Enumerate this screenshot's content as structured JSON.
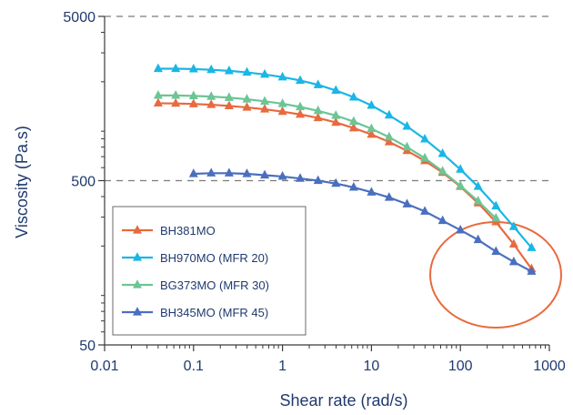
{
  "chart_data": {
    "type": "line",
    "title": "",
    "xlabel": "Shear rate (rad/s)",
    "ylabel": "Viscosity (Pa.s)",
    "x_scale": "log",
    "y_scale": "log",
    "xlim": [
      0.01,
      1000
    ],
    "ylim": [
      50,
      5000
    ],
    "x_ticks": [
      {
        "value": 0.01,
        "label": "0.01"
      },
      {
        "value": 0.1,
        "label": "0.1"
      },
      {
        "value": 1,
        "label": "1"
      },
      {
        "value": 10,
        "label": "10"
      },
      {
        "value": 100,
        "label": "100"
      },
      {
        "value": 1000,
        "label": "1000"
      }
    ],
    "y_ticks": [
      {
        "value": 50,
        "label": "50"
      },
      {
        "value": 500,
        "label": "500"
      },
      {
        "value": 5000,
        "label": "5000"
      }
    ],
    "grid": "dashed horizontal lines at 500 and 5000",
    "legend_position": "bottom-left",
    "annotation": {
      "shape": "ellipse",
      "color": "#e86a3f",
      "center": [
        290,
        170
      ],
      "note": "circled high shear-rate region"
    },
    "series": [
      {
        "name": "BH381MO",
        "color": "#e86a3f",
        "x": [
          0.04,
          0.063,
          0.1,
          0.158,
          0.251,
          0.398,
          0.631,
          1,
          1.58,
          2.51,
          3.98,
          6.31,
          10,
          15.8,
          25.1,
          39.8,
          63.1,
          100,
          158,
          251,
          398,
          631
        ],
        "y": [
          1480,
          1475,
          1465,
          1450,
          1425,
          1395,
          1360,
          1315,
          1265,
          1205,
          1130,
          1045,
          955,
          860,
          760,
          660,
          560,
          460,
          365,
          280,
          205,
          145
        ]
      },
      {
        "name": "BH970MO (MFR 20)",
        "color": "#1ab6e6",
        "x": [
          0.04,
          0.063,
          0.1,
          0.158,
          0.251,
          0.398,
          0.631,
          1,
          1.58,
          2.51,
          3.98,
          6.31,
          10,
          15.8,
          25.1,
          39.8,
          63.1,
          100,
          158,
          251,
          398,
          631
        ],
        "y": [
          2400,
          2400,
          2390,
          2365,
          2330,
          2280,
          2215,
          2135,
          2035,
          1915,
          1770,
          1610,
          1435,
          1250,
          1070,
          895,
          730,
          585,
          460,
          350,
          262,
          195
        ]
      },
      {
        "name": "BG373MO (MFR 30)",
        "color": "#6cc594",
        "x": [
          0.04,
          0.063,
          0.1,
          0.158,
          0.251,
          0.398,
          0.631,
          1,
          1.58,
          2.51,
          3.98,
          6.31,
          10,
          15.8,
          25.1,
          39.8,
          63.1,
          100,
          158,
          251
        ],
        "y": [
          1650,
          1650,
          1640,
          1625,
          1600,
          1565,
          1520,
          1470,
          1405,
          1330,
          1245,
          1145,
          1035,
          920,
          800,
          685,
          570,
          465,
          375,
          295
        ]
      },
      {
        "name": "BH345MO (MFR 45)",
        "color": "#4a6fbf",
        "x": [
          0.1,
          0.158,
          0.251,
          0.398,
          0.631,
          1,
          1.58,
          2.51,
          3.98,
          6.31,
          10,
          15.8,
          25.1,
          39.8,
          63.1,
          100,
          158,
          251,
          398,
          631
        ],
        "y": [
          550,
          555,
          555,
          550,
          540,
          530,
          515,
          500,
          480,
          455,
          425,
          395,
          360,
          325,
          285,
          250,
          218,
          185,
          160,
          140
        ]
      }
    ]
  }
}
